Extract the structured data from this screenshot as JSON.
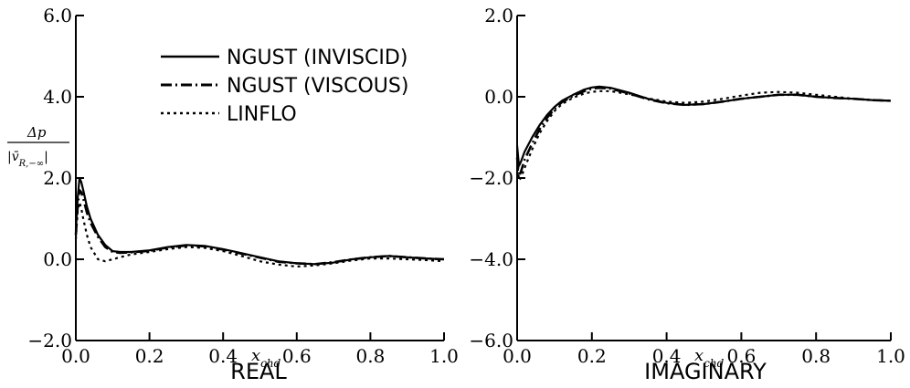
{
  "chart_data": [
    {
      "type": "line",
      "title": "REAL",
      "xlabel": "x_chd",
      "ylabel": "Δp / |v̄_{R,−∞}|",
      "xlim": [
        0.0,
        1.0
      ],
      "ylim": [
        -2.0,
        6.0
      ],
      "xticks": [
        "0.0",
        "0.2",
        "0.4",
        "0.6",
        "0.8",
        "1.0"
      ],
      "yticks": [
        "-2.0",
        "0.0",
        "2.0",
        "4.0",
        "6.0"
      ],
      "legend": {
        "placement": "top-right",
        "entries": [
          "NGUST (INVISCID)",
          "NGUST (VISCOUS)",
          "LINFLO"
        ]
      },
      "series": [
        {
          "name": "NGUST (INVISCID)",
          "style": "solid",
          "x": [
            0.0,
            0.005,
            0.01,
            0.015,
            0.02,
            0.03,
            0.04,
            0.06,
            0.08,
            0.1,
            0.12,
            0.15,
            0.2,
            0.25,
            0.3,
            0.35,
            0.4,
            0.45,
            0.5,
            0.55,
            0.6,
            0.65,
            0.7,
            0.75,
            0.8,
            0.85,
            0.9,
            0.95,
            1.0
          ],
          "y": [
            0.7,
            1.5,
            2.0,
            1.9,
            1.7,
            1.3,
            1.0,
            0.6,
            0.35,
            0.2,
            0.18,
            0.18,
            0.22,
            0.3,
            0.35,
            0.33,
            0.25,
            0.15,
            0.05,
            -0.05,
            -0.1,
            -0.12,
            -0.08,
            0.0,
            0.05,
            0.08,
            0.05,
            0.02,
            0.0
          ]
        },
        {
          "name": "NGUST (VISCOUS)",
          "style": "dash-dot",
          "x": [
            0.0,
            0.005,
            0.01,
            0.015,
            0.02,
            0.03,
            0.04,
            0.06,
            0.08,
            0.1,
            0.12,
            0.15,
            0.2,
            0.25,
            0.3,
            0.35,
            0.4,
            0.45,
            0.5,
            0.55,
            0.6,
            0.65,
            0.7,
            0.75,
            0.8,
            0.85,
            0.9,
            0.95,
            1.0
          ],
          "y": [
            0.6,
            1.3,
            1.7,
            1.65,
            1.5,
            1.15,
            0.9,
            0.55,
            0.3,
            0.18,
            0.16,
            0.17,
            0.21,
            0.29,
            0.34,
            0.32,
            0.24,
            0.14,
            0.04,
            -0.06,
            -0.1,
            -0.12,
            -0.07,
            0.0,
            0.05,
            0.08,
            0.05,
            0.02,
            0.0
          ]
        },
        {
          "name": "LINFLO",
          "style": "dotted",
          "x": [
            0.0,
            0.005,
            0.01,
            0.015,
            0.02,
            0.03,
            0.04,
            0.06,
            0.08,
            0.1,
            0.12,
            0.15,
            0.2,
            0.25,
            0.3,
            0.35,
            0.4,
            0.45,
            0.5,
            0.55,
            0.6,
            0.65,
            0.7,
            0.75,
            0.8,
            0.85,
            0.9,
            0.95,
            1.0
          ],
          "y": [
            0.5,
            1.2,
            1.4,
            1.25,
            1.0,
            0.6,
            0.3,
            0.0,
            -0.05,
            0.0,
            0.05,
            0.12,
            0.18,
            0.25,
            0.3,
            0.28,
            0.2,
            0.08,
            -0.05,
            -0.13,
            -0.18,
            -0.15,
            -0.1,
            -0.03,
            0.02,
            0.02,
            0.0,
            -0.02,
            -0.05
          ]
        }
      ]
    },
    {
      "type": "line",
      "title": "IMAGINARY",
      "xlabel": "x_chd",
      "xlim": [
        0.0,
        1.0
      ],
      "ylim": [
        -6.0,
        2.0
      ],
      "xticks": [
        "0.0",
        "0.2",
        "0.4",
        "0.6",
        "0.8",
        "1.0"
      ],
      "yticks": [
        "-6.0",
        "-4.0",
        "-2.0",
        "0.0",
        "2.0"
      ],
      "series": [
        {
          "name": "NGUST (INVISCID)",
          "style": "solid",
          "x": [
            0.0,
            0.005,
            0.01,
            0.02,
            0.04,
            0.06,
            0.08,
            0.1,
            0.12,
            0.15,
            0.18,
            0.2,
            0.22,
            0.25,
            0.3,
            0.35,
            0.4,
            0.45,
            0.5,
            0.55,
            0.6,
            0.65,
            0.7,
            0.75,
            0.8,
            0.85,
            0.9,
            0.95,
            1.0
          ],
          "y": [
            -1.2,
            -1.7,
            -1.6,
            -1.35,
            -1.0,
            -0.7,
            -0.45,
            -0.25,
            -0.1,
            0.05,
            0.18,
            0.23,
            0.25,
            0.22,
            0.1,
            -0.05,
            -0.15,
            -0.2,
            -0.18,
            -0.12,
            -0.05,
            0.0,
            0.05,
            0.05,
            0.0,
            -0.03,
            -0.05,
            -0.08,
            -0.1
          ]
        },
        {
          "name": "NGUST (VISCOUS)",
          "style": "dash-dot",
          "x": [
            0.0,
            0.005,
            0.01,
            0.02,
            0.04,
            0.06,
            0.08,
            0.1,
            0.12,
            0.15,
            0.18,
            0.2,
            0.22,
            0.25,
            0.3,
            0.35,
            0.4,
            0.45,
            0.5,
            0.55,
            0.6,
            0.65,
            0.7,
            0.75,
            0.8,
            0.85,
            0.9,
            0.95,
            1.0
          ],
          "y": [
            -1.5,
            -1.95,
            -1.85,
            -1.55,
            -1.15,
            -0.8,
            -0.52,
            -0.3,
            -0.13,
            0.02,
            0.14,
            0.2,
            0.22,
            0.2,
            0.08,
            -0.06,
            -0.16,
            -0.2,
            -0.18,
            -0.12,
            -0.05,
            0.0,
            0.05,
            0.05,
            0.0,
            -0.03,
            -0.05,
            -0.08,
            -0.1
          ]
        },
        {
          "name": "LINFLO",
          "style": "dotted",
          "x": [
            0.0,
            0.005,
            0.01,
            0.02,
            0.04,
            0.06,
            0.08,
            0.1,
            0.12,
            0.15,
            0.18,
            0.2,
            0.22,
            0.25,
            0.3,
            0.35,
            0.4,
            0.45,
            0.5,
            0.55,
            0.6,
            0.65,
            0.7,
            0.75,
            0.8,
            0.85,
            0.9,
            0.95,
            1.0
          ],
          "y": [
            -1.6,
            -2.05,
            -2.0,
            -1.75,
            -1.3,
            -0.9,
            -0.6,
            -0.35,
            -0.18,
            -0.02,
            0.08,
            0.12,
            0.14,
            0.14,
            0.06,
            -0.04,
            -0.12,
            -0.15,
            -0.12,
            -0.05,
            0.03,
            0.1,
            0.12,
            0.1,
            0.05,
            0.0,
            -0.05,
            -0.08,
            -0.1
          ]
        }
      ]
    }
  ]
}
